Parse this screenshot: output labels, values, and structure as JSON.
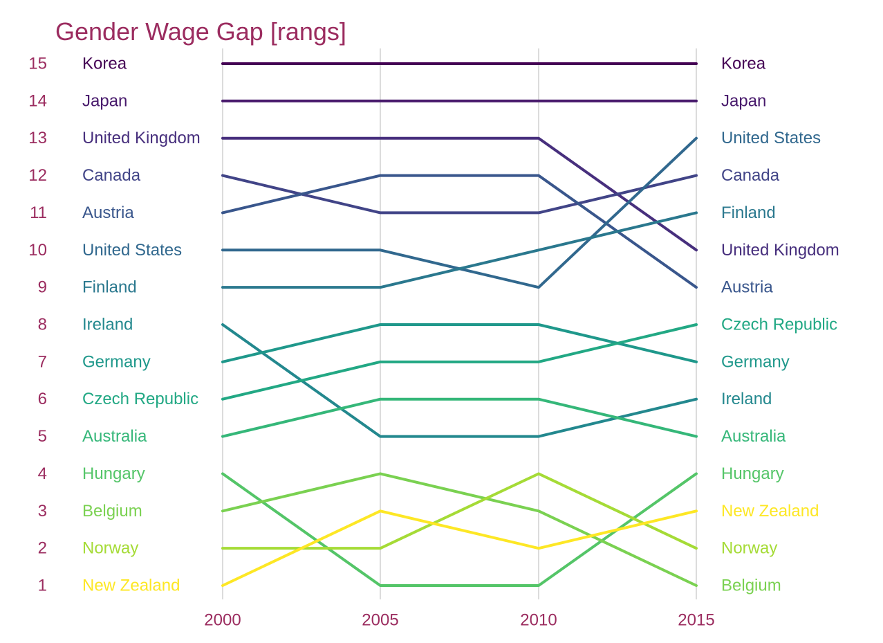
{
  "chart_data": {
    "type": "line",
    "title": "Gender Wage Gap [rangs]",
    "x": [
      "2000",
      "2005",
      "2010",
      "2015"
    ],
    "ylim": [
      1,
      15
    ],
    "y_ticks": [
      "15",
      "14",
      "13",
      "12",
      "11",
      "10",
      "9",
      "8",
      "7",
      "6",
      "5",
      "4",
      "3",
      "2",
      "1"
    ],
    "grid": "vertical only",
    "legend": "none (country labels at left and right ends of lines)",
    "series": [
      {
        "name": "Korea",
        "values": [
          15,
          15,
          15,
          15
        ],
        "color": "#440154"
      },
      {
        "name": "Japan",
        "values": [
          14,
          14,
          14,
          14
        ],
        "color": "#481a6c"
      },
      {
        "name": "United Kingdom",
        "values": [
          13,
          13,
          13,
          10
        ],
        "color": "#472f7d"
      },
      {
        "name": "Canada",
        "values": [
          12,
          11,
          11,
          12
        ],
        "color": "#414487"
      },
      {
        "name": "Austria",
        "values": [
          11,
          12,
          12,
          9
        ],
        "color": "#39568c"
      },
      {
        "name": "United States",
        "values": [
          10,
          10,
          9,
          13
        ],
        "color": "#31688e"
      },
      {
        "name": "Finland",
        "values": [
          9,
          9,
          10,
          11
        ],
        "color": "#2a788e"
      },
      {
        "name": "Ireland",
        "values": [
          8,
          5,
          5,
          6
        ],
        "color": "#23888e"
      },
      {
        "name": "Germany",
        "values": [
          7,
          8,
          8,
          7
        ],
        "color": "#1f988b"
      },
      {
        "name": "Czech Republic",
        "values": [
          6,
          7,
          7,
          8
        ],
        "color": "#22a884"
      },
      {
        "name": "Australia",
        "values": [
          5,
          6,
          6,
          5
        ],
        "color": "#35b779"
      },
      {
        "name": "Hungary",
        "values": [
          4,
          1,
          1,
          4
        ],
        "color": "#54c568"
      },
      {
        "name": "Belgium",
        "values": [
          3,
          4,
          3,
          1
        ],
        "color": "#7ad151"
      },
      {
        "name": "Norway",
        "values": [
          2,
          2,
          4,
          2
        ],
        "color": "#a5db36"
      },
      {
        "name": "New Zealand",
        "values": [
          1,
          3,
          2,
          3
        ],
        "color": "#fde725"
      }
    ]
  },
  "colors": {
    "title": "#9b2c5f",
    "ticks": "#9b2c5f",
    "gridline": "#c8c8c8",
    "background": "#ffffff"
  }
}
